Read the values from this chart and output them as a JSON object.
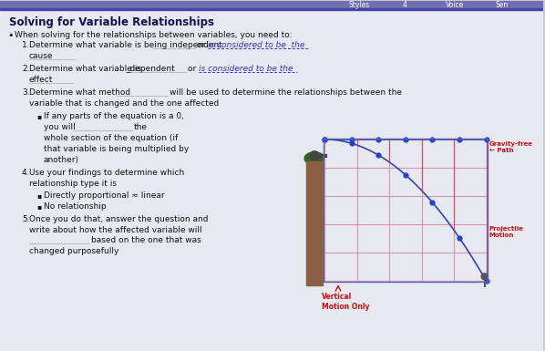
{
  "bg_color": "#c8c8d8",
  "content_bg": "#e8e8f0",
  "title": "Solving for Variable Relationships",
  "title_color": "#111155",
  "title_fontsize": 8.5,
  "bullet_color": "#111111",
  "body_fontsize": 6.5,
  "underline_color": "#2222bb",
  "dotted_color": "#3333cc",
  "header_bar_color": "#7070b0",
  "header_line_color": "#4444aa",
  "top_tabs": [
    "Styles",
    "4",
    "Voice",
    "Sen"
  ],
  "diagram": {
    "gravity_free_label": "Gravity-free\n← Path",
    "projectile_label": "Projectile\nMotion",
    "vertical_label": "Vertical\nMotion Only",
    "label_color": "#cc1111",
    "grid_color": "#cc8899",
    "path_color": "#3344aa",
    "dot_color": "#2244cc",
    "cliff_color": "#8B6040",
    "green_color": "#336622",
    "cannon_color": "#444444"
  }
}
